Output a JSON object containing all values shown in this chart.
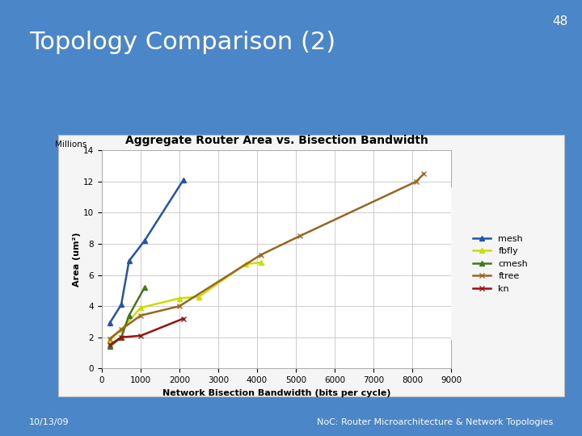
{
  "title": "Aggregate Router Area vs. Bisection Bandwidth",
  "xlabel": "Network Bisection Bandwidth (bits per cycle)",
  "millions_label": "Millions",
  "xlim": [
    0,
    9000
  ],
  "ylim": [
    0,
    14
  ],
  "xticks": [
    0,
    1000,
    2000,
    3000,
    4000,
    5000,
    6000,
    7000,
    8000,
    9000
  ],
  "yticks": [
    0,
    2,
    4,
    6,
    8,
    10,
    12,
    14
  ],
  "slide_number": "48",
  "title_main": "Topology Comparison (2)",
  "footer_left": "10/13/09",
  "footer_right": "NoC: Router Microarchitecture & Network Topologies",
  "series": {
    "mesh": {
      "x": [
        200,
        500,
        700,
        1100,
        2100
      ],
      "y": [
        2.9,
        4.1,
        6.9,
        8.2,
        12.1
      ],
      "color": "#2255aa",
      "marker": "^",
      "linewidth": 1.8
    },
    "fbfly": {
      "x": [
        200,
        500,
        1000,
        2000,
        2500,
        3700,
        4100
      ],
      "y": [
        1.8,
        2.5,
        3.9,
        4.5,
        4.6,
        6.7,
        6.8
      ],
      "color": "#ccdd00",
      "marker": "^",
      "linewidth": 1.8
    },
    "cmesh": {
      "x": [
        200,
        500,
        700,
        1100
      ],
      "y": [
        1.4,
        2.0,
        3.4,
        5.2
      ],
      "color": "#447722",
      "marker": "^",
      "linewidth": 1.8
    },
    "ftree": {
      "x": [
        200,
        500,
        1000,
        2000,
        4100,
        5100,
        8100,
        8300
      ],
      "y": [
        1.9,
        2.5,
        3.4,
        4.0,
        7.3,
        8.5,
        12.0,
        12.5
      ],
      "color": "#996622",
      "marker": "x",
      "linewidth": 1.8
    },
    "kn": {
      "x": [
        200,
        500,
        1000,
        2100
      ],
      "y": [
        1.5,
        2.0,
        2.1,
        3.2
      ],
      "color": "#991111",
      "marker": "x",
      "linewidth": 1.8
    }
  },
  "slide_bg": "#4a86c8",
  "chart_bg": "#ffffff",
  "outer_box_bg": "#f0f0f0"
}
